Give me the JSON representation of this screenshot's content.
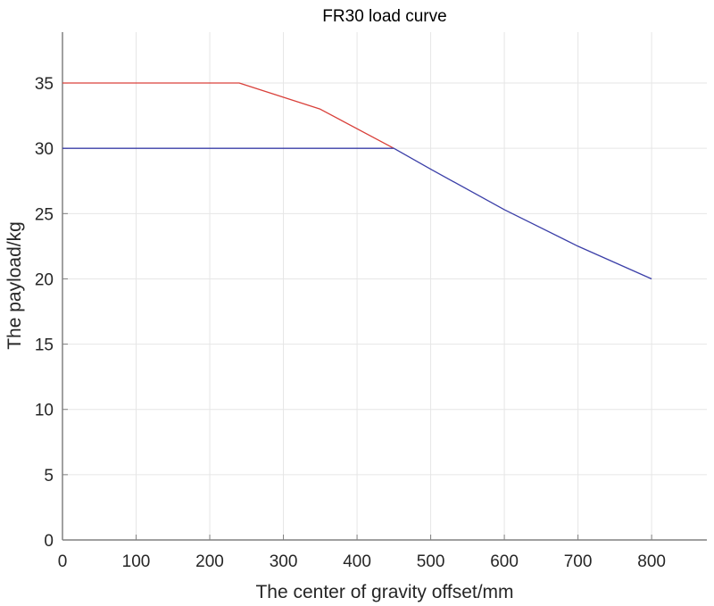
{
  "chart_data": {
    "type": "line",
    "title": "FR30 load curve",
    "xlabel": "The center of gravity offset/mm",
    "ylabel": "The payload/kg",
    "xlim": [
      0,
      875
    ],
    "ylim": [
      0,
      38.9
    ],
    "grid": true,
    "legend": null,
    "xticks": [
      0,
      100,
      200,
      300,
      400,
      500,
      600,
      700,
      800
    ],
    "yticks": [
      0,
      5,
      10,
      15,
      20,
      25,
      30,
      35
    ],
    "series": [
      {
        "name": "red curve",
        "color": "#d9403a",
        "x": [
          0,
          240,
          350,
          450
        ],
        "y": [
          35,
          35,
          33,
          30
        ]
      },
      {
        "name": "blue curve",
        "color": "#3b3fa8",
        "x": [
          0,
          450,
          500,
          600,
          700,
          800
        ],
        "y": [
          30,
          30,
          28.4,
          25.3,
          22.5,
          20
        ]
      }
    ]
  },
  "colors": {
    "grid": "#e6e6e6",
    "axis": "#808080",
    "text": "#262626"
  }
}
